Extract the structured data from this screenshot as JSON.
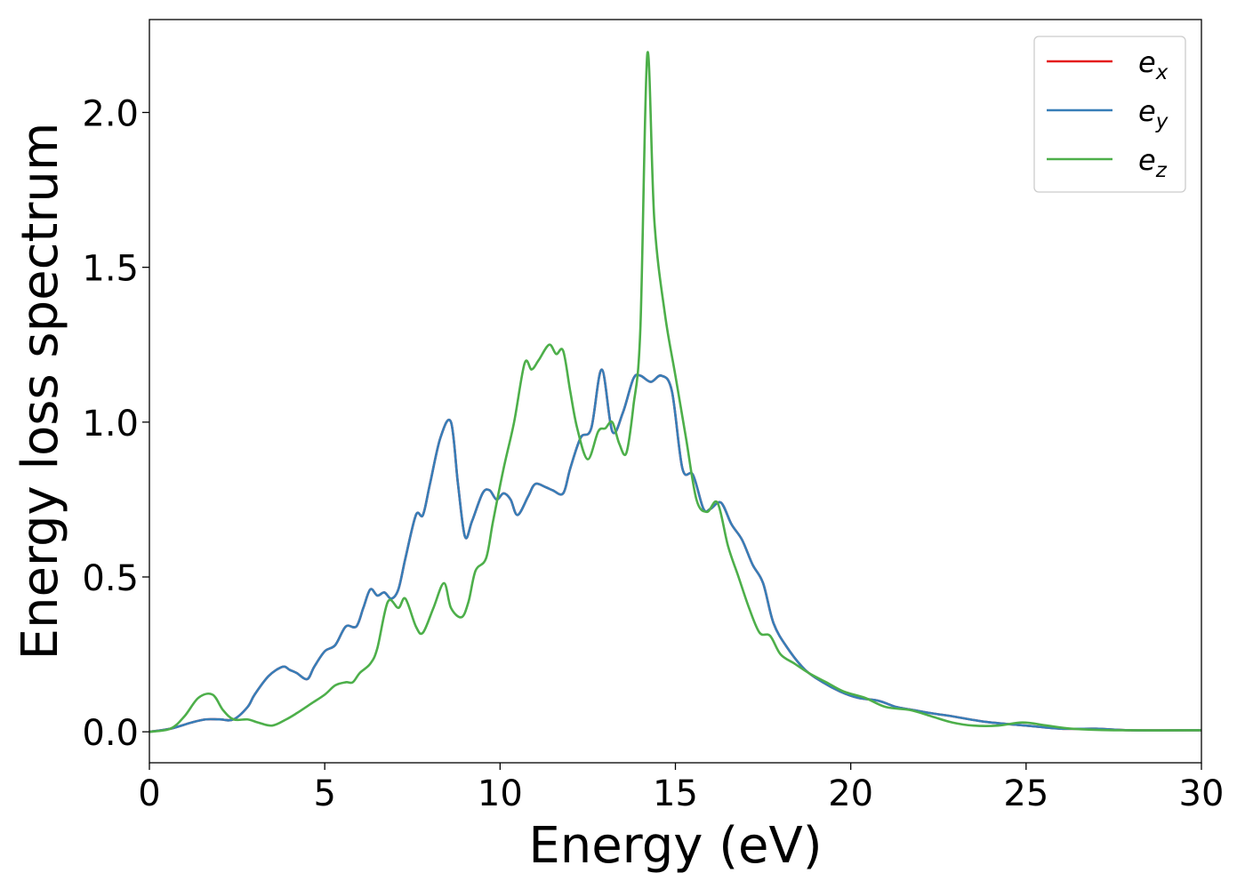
{
  "chart_data": {
    "type": "line",
    "title": "",
    "xlabel": "Energy (eV)",
    "ylabel": "Energy loss spectrum",
    "xlim": [
      0,
      30
    ],
    "ylim": [
      -0.1,
      2.3
    ],
    "xticks": [
      0,
      5,
      10,
      15,
      20,
      25,
      30
    ],
    "yticks": [
      0.0,
      0.5,
      1.0,
      1.5,
      2.0
    ],
    "xtick_labels": [
      "0",
      "5",
      "10",
      "15",
      "20",
      "25",
      "30"
    ],
    "ytick_labels": [
      "0.0",
      "0.5",
      "1.0",
      "1.5",
      "2.0"
    ],
    "grid": false,
    "legend_position": "top-right",
    "series": [
      {
        "name": "e_x",
        "base": "e",
        "sub": "x",
        "color": "#e41a1c",
        "ref": "e_y"
      },
      {
        "name": "e_y",
        "base": "e",
        "sub": "y",
        "color": "#377eb8",
        "x": [
          0,
          0.6,
          1.2,
          1.6,
          2.0,
          2.4,
          2.8,
          3.0,
          3.4,
          3.8,
          4.0,
          4.2,
          4.5,
          4.7,
          5.0,
          5.3,
          5.6,
          5.9,
          6.1,
          6.3,
          6.5,
          6.7,
          6.9,
          7.1,
          7.3,
          7.6,
          7.8,
          8.0,
          8.3,
          8.6,
          8.8,
          9.0,
          9.2,
          9.5,
          9.7,
          9.9,
          10.1,
          10.3,
          10.5,
          10.8,
          11.0,
          11.3,
          11.5,
          11.8,
          12.0,
          12.3,
          12.6,
          12.9,
          13.2,
          13.5,
          13.8,
          14.0,
          14.3,
          14.6,
          14.9,
          15.2,
          15.5,
          15.8,
          16.0,
          16.3,
          16.6,
          16.9,
          17.2,
          17.5,
          17.8,
          18.2,
          18.7,
          19.2,
          19.7,
          20.2,
          20.8,
          21.3,
          21.8,
          22.3,
          22.9,
          23.4,
          24.0,
          25.0,
          26.0,
          27.0,
          28.0,
          30.0
        ],
        "y": [
          0.0,
          0.01,
          0.03,
          0.04,
          0.04,
          0.04,
          0.08,
          0.12,
          0.18,
          0.21,
          0.2,
          0.19,
          0.17,
          0.21,
          0.26,
          0.28,
          0.34,
          0.34,
          0.4,
          0.46,
          0.44,
          0.45,
          0.43,
          0.46,
          0.56,
          0.7,
          0.7,
          0.8,
          0.95,
          1.0,
          0.8,
          0.63,
          0.68,
          0.77,
          0.78,
          0.75,
          0.77,
          0.75,
          0.7,
          0.76,
          0.8,
          0.79,
          0.78,
          0.77,
          0.85,
          0.95,
          0.98,
          1.17,
          0.97,
          1.03,
          1.14,
          1.15,
          1.13,
          1.15,
          1.1,
          0.85,
          0.83,
          0.72,
          0.72,
          0.74,
          0.67,
          0.62,
          0.54,
          0.48,
          0.35,
          0.27,
          0.2,
          0.16,
          0.13,
          0.11,
          0.1,
          0.08,
          0.07,
          0.06,
          0.05,
          0.04,
          0.03,
          0.02,
          0.01,
          0.01,
          0.005,
          0.005
        ]
      },
      {
        "name": "e_z",
        "base": "e",
        "sub": "z",
        "color": "#4daf4a",
        "x": [
          0,
          0.6,
          1.0,
          1.4,
          1.8,
          2.1,
          2.4,
          2.8,
          3.1,
          3.5,
          3.9,
          4.2,
          4.6,
          5.0,
          5.3,
          5.6,
          5.8,
          6.0,
          6.3,
          6.5,
          6.8,
          7.1,
          7.3,
          7.6,
          7.8,
          8.1,
          8.4,
          8.6,
          8.9,
          9.1,
          9.3,
          9.6,
          9.8,
          10.1,
          10.4,
          10.7,
          10.9,
          11.1,
          11.4,
          11.6,
          11.8,
          12.0,
          12.2,
          12.5,
          12.8,
          13.0,
          13.2,
          13.4,
          13.6,
          13.8,
          14.0,
          14.2,
          14.4,
          14.7,
          15.0,
          15.3,
          15.6,
          15.9,
          16.2,
          16.5,
          16.8,
          17.1,
          17.4,
          17.7,
          18.0,
          18.4,
          18.8,
          19.3,
          19.8,
          20.4,
          21.0,
          21.7,
          22.3,
          22.9,
          23.5,
          24.2,
          24.9,
          25.6,
          26.3,
          27.5,
          30.0
        ],
        "y": [
          0.0,
          0.01,
          0.05,
          0.11,
          0.12,
          0.07,
          0.04,
          0.04,
          0.03,
          0.02,
          0.04,
          0.06,
          0.09,
          0.12,
          0.15,
          0.16,
          0.16,
          0.19,
          0.22,
          0.27,
          0.42,
          0.4,
          0.43,
          0.34,
          0.32,
          0.4,
          0.48,
          0.4,
          0.37,
          0.42,
          0.52,
          0.56,
          0.68,
          0.85,
          1.0,
          1.19,
          1.17,
          1.2,
          1.25,
          1.22,
          1.23,
          1.1,
          0.98,
          0.88,
          0.97,
          0.98,
          1.0,
          0.93,
          0.9,
          1.05,
          1.3,
          2.19,
          1.65,
          1.35,
          1.15,
          0.95,
          0.75,
          0.71,
          0.74,
          0.6,
          0.5,
          0.4,
          0.32,
          0.31,
          0.25,
          0.22,
          0.19,
          0.16,
          0.13,
          0.11,
          0.08,
          0.07,
          0.05,
          0.03,
          0.02,
          0.02,
          0.03,
          0.02,
          0.01,
          0.005,
          0.005
        ]
      }
    ]
  }
}
